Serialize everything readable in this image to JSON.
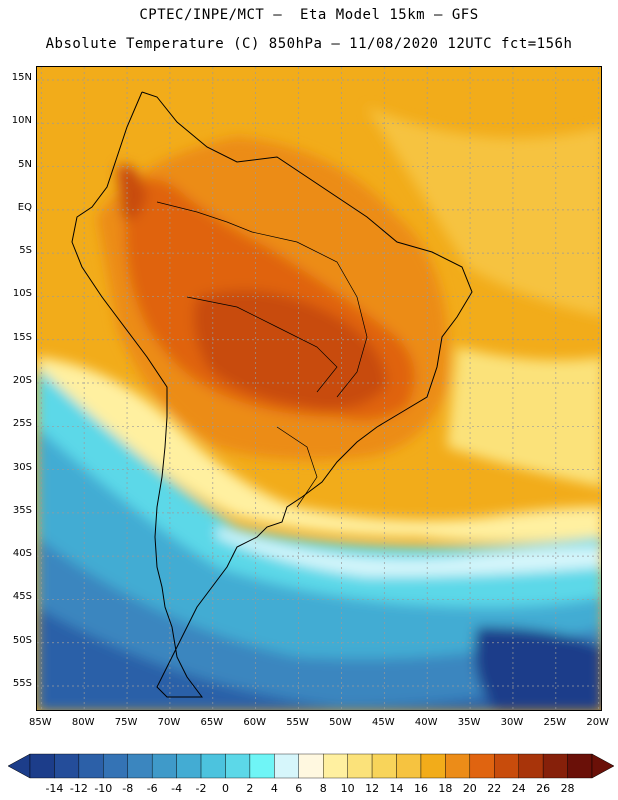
{
  "header": {
    "title_line1": "CPTEC/INPE/MCT –  Eta Model 15km – GFS",
    "title_line2": "Absolute Temperature (C) 850hPa – 11/08/2020 12UTC fct=156h"
  },
  "map": {
    "lat_labels": [
      "15N",
      "10N",
      "5N",
      "EQ",
      "5S",
      "10S",
      "15S",
      "20S",
      "25S",
      "30S",
      "35S",
      "40S",
      "45S",
      "50S",
      "55S"
    ],
    "lon_labels": [
      "85W",
      "80W",
      "75W",
      "70W",
      "65W",
      "60W",
      "55W",
      "50W",
      "45W",
      "40W",
      "35W",
      "30W",
      "25W",
      "20W"
    ],
    "lat_values": [
      15,
      10,
      5,
      0,
      -5,
      -10,
      -15,
      -20,
      -25,
      -30,
      -35,
      -40,
      -45,
      -50,
      -55
    ],
    "lon_values": [
      -85,
      -80,
      -75,
      -70,
      -65,
      -60,
      -55,
      -50,
      -45,
      -40,
      -35,
      -30,
      -25,
      -20
    ],
    "extent": {
      "lon_min": -85.5,
      "lon_max": -19.5,
      "lat_min": -58,
      "lat_max": 16.5
    },
    "field_regions": [
      {
        "name": "far-south-cold",
        "value": -4
      },
      {
        "name": "southern-cold",
        "value": 0
      },
      {
        "name": "southeast-transition",
        "value": 8
      },
      {
        "name": "atlantic-warm",
        "value": 20
      },
      {
        "name": "continental-hot",
        "value": 24
      },
      {
        "name": "core-hot",
        "value": 26
      }
    ]
  },
  "colorbar": {
    "labels": [
      "-14",
      "-12",
      "-10",
      "-8",
      "-6",
      "-4",
      "-2",
      "0",
      "2",
      "4",
      "6",
      "8",
      "10",
      "12",
      "14",
      "16",
      "18",
      "20",
      "22",
      "24",
      "26",
      "28"
    ],
    "colors": [
      "#1c3d8a",
      "#244d9a",
      "#2c60a8",
      "#3473b5",
      "#3b86bf",
      "#3f9ac9",
      "#43acd3",
      "#4cc3de",
      "#5cd8e8",
      "#6ff5f6",
      "#d6f6fb",
      "#fff8e0",
      "#fff0a0",
      "#fbe27a",
      "#f8d45a",
      "#f6c340",
      "#f2ac1a",
      "#ec8c18",
      "#e06410",
      "#c84c0c",
      "#a8340a",
      "#86200a",
      "#6a1008"
    ],
    "min_color": "#1c3d8a",
    "max_color": "#6a1008"
  }
}
